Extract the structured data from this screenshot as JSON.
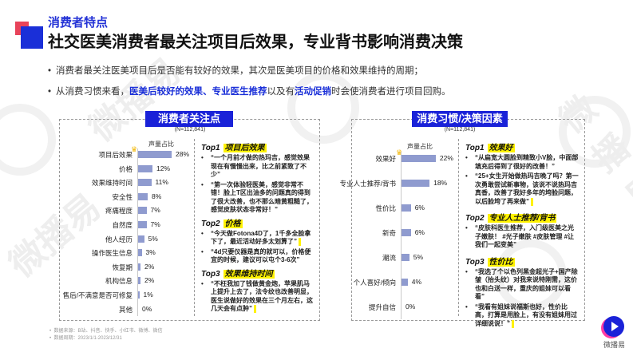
{
  "header": {
    "subtitle": "消费者特点",
    "title": "社交医美消费者最关注项目后效果，专业背书影响消费决策"
  },
  "bullets": [
    {
      "parts": [
        {
          "text": "消费者最关注医美项目后是否能有较好的效果，其次是医美项目的价格和效果维持的周期；",
          "highlight": false
        }
      ]
    },
    {
      "parts": [
        {
          "text": "从消费习惯来看，",
          "highlight": false
        },
        {
          "text": "医美后较好的效果、专业医生推荐",
          "highlight": true
        },
        {
          "text": "以及有",
          "highlight": false
        },
        {
          "text": "活动促销",
          "highlight": true
        },
        {
          "text": "时会使消费者进行项目回购。",
          "highlight": false
        }
      ]
    }
  ],
  "left_panel": {
    "title": "消费者关注点",
    "n": "(N=112,841)",
    "axis_title": "声量占比",
    "tops": [
      {
        "label": "Top1",
        "tag": "项目后效果",
        "quotes": [
          "“一个月前才做的热玛吉，感觉效果现在有慢慢出来，比之前紧致了不少”",
          "“第一次体验轻医美，感觉非常不错！脸上T区出油多的问题真的得到了很大改善，也不那么暗黄粗糙了，感觉皮肤状态非常好！”"
        ]
      },
      {
        "label": "Top2",
        "tag": "价格",
        "quotes": [
          "“今天做Fotona4D了，1千多全脸拿下了，最近活动好多太划算了”",
          "“4d只要仪器是真的就可以，价格便宜的时候，建议可以屯个3-6次”"
        ]
      },
      {
        "label": "Top3",
        "tag": "效果维持时间",
        "quotes": [
          "“不枉我加了钱做黄金炮，苹果肌马上提升上去了，法令纹也改善明显，医生说做好的效果在三个月左右，这几天会有点肿”"
        ]
      }
    ]
  },
  "right_panel": {
    "title": "消费习惯/决策因素",
    "n": "(N=112,841)",
    "axis_title": "声量占比",
    "tops": [
      {
        "label": "Top1",
        "tag": "效果好",
        "quotes": [
          "“从扁宽大圆脸到精致小V脸，中面部填充后得到了很好的改善！”",
          "“25+女生开始做热玛吉晚了吗？第一次勇敢尝试新事物，该说不说热玛吉真香，改善了我好多年的垮脸问题，以后脸垮了再来做”"
        ]
      },
      {
        "label": "Top2",
        "tag": "专业人士推荐/背书",
        "quotes": [
          "“皮肤科医生推荐，入门级医美之光子嫩肤！ #光子嫩肤 #皮肤管理 #让我们一起变美”"
        ]
      },
      {
        "label": "Top3",
        "tag": "性价比",
        "quotes": [
          "“我选了个以色列黑金超光子+国产除皱（抬头纹）对我来说特刚需，这价也和白送一样，重庆的姐妹可以看看”",
          "“我看有姐妹说福斯也好，性价比高，打算是用脸上，有没有姐妹用过详细说说！”"
        ]
      }
    ]
  },
  "chart_data": [
    {
      "type": "bar",
      "orientation": "horizontal",
      "title": "消费者关注点",
      "subtitle": "(N=112,841)",
      "xlabel": "声量占比",
      "ylabel": "",
      "categories": [
        "项目后效果",
        "价格",
        "效果维持时间",
        "安全性",
        "疼痛程度",
        "自然度",
        "他人经历",
        "操作医生信息",
        "恢复期",
        "机构信息",
        "售后/不满意是否可修复",
        "其他"
      ],
      "values": [
        28,
        12,
        11,
        8,
        7,
        7,
        5,
        3,
        2,
        2,
        1,
        0
      ],
      "value_labels": [
        "28%",
        "12%",
        "11%",
        "8%",
        "7%",
        "7%",
        "5%",
        "3%",
        "2%",
        "2%",
        "1%",
        "0%"
      ],
      "unit": "%",
      "xlim": [
        0,
        30
      ],
      "grid": false,
      "bar_color": "#8f9bcf"
    },
    {
      "type": "bar",
      "orientation": "horizontal",
      "title": "消费习惯/决策因素",
      "subtitle": "(N=112,841)",
      "xlabel": "声量占比",
      "ylabel": "",
      "categories": [
        "效果好",
        "专业人士推荐/背书",
        "性价比",
        "新奇",
        "潮流",
        "个人喜好/倾向",
        "提升自信"
      ],
      "values": [
        22,
        18,
        6,
        6,
        5,
        4,
        0
      ],
      "value_labels": [
        "22%",
        "18%",
        "6%",
        "6%",
        "5%",
        "4%",
        "0%"
      ],
      "unit": "%",
      "xlim": [
        0,
        25
      ],
      "grid": false,
      "bar_color": "#8f9bcf"
    }
  ],
  "footer": {
    "source": "数据来源：B站、抖音、快手、小红书、微博、微信",
    "period": "数据周期：2023/1/1-2023/12/31"
  },
  "brand": {
    "name": "微播易",
    "icon": "play-logo-icon"
  },
  "watermark": "微播易",
  "colors": {
    "accent": "#1a22d8",
    "accent_red": "#e8435a",
    "bar": "#8f9bcf",
    "highlight": "#fff200"
  }
}
